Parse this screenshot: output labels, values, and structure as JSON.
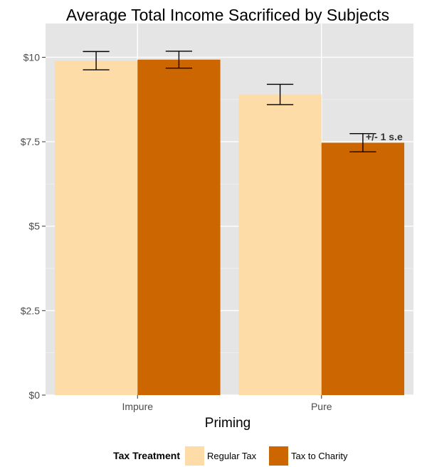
{
  "chart_data": {
    "type": "bar",
    "title": "Average Total Income Sacrificed by Subjects",
    "xlabel": "Priming",
    "ylabel": "",
    "categories": [
      "Impure",
      "Pure"
    ],
    "y_ticks": [
      0,
      2.5,
      5,
      7.5,
      10
    ],
    "y_tick_labels": [
      "$0",
      "$2.5",
      "$5",
      "$7.5",
      "$10"
    ],
    "ylim": [
      0,
      11
    ],
    "grid": true,
    "legend": {
      "title": "Tax Treatment",
      "position": "bottom"
    },
    "series": [
      {
        "name": "Regular Tax",
        "color": "#FDDCA8",
        "values": [
          9.9,
          8.9
        ],
        "se": [
          0.27,
          0.3
        ]
      },
      {
        "name": "Tax to Charity",
        "color": "#CC6600",
        "values": [
          9.93,
          7.47
        ],
        "se": [
          0.25,
          0.27
        ]
      }
    ],
    "annotation": {
      "text": "+/- 1 s.e",
      "category_index": 1,
      "series_index": 1
    }
  }
}
